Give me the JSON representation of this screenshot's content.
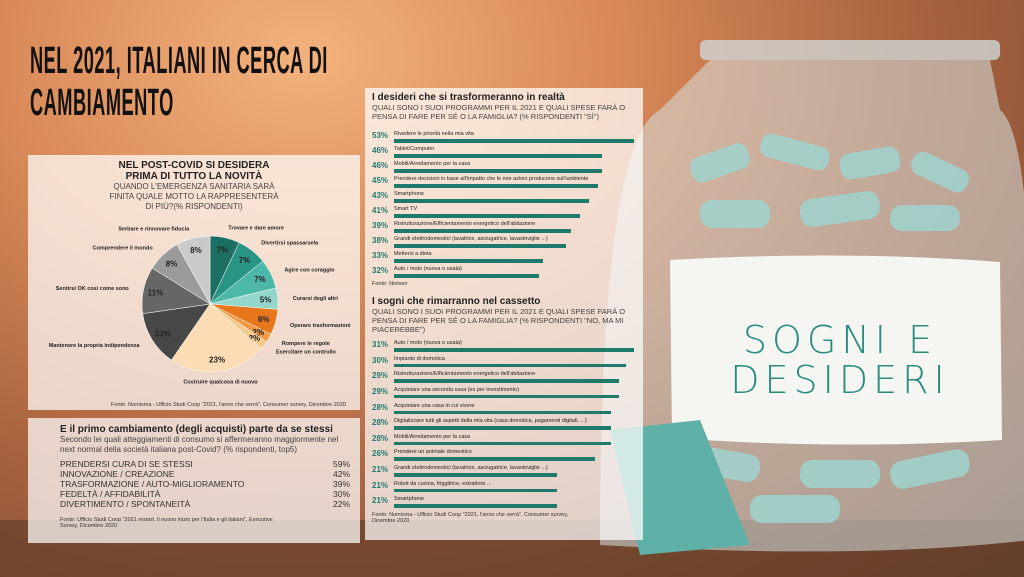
{
  "title": "NEL 2021, ITALIANI IN CERCA DI CAMBIAMENTO",
  "jar_label": "SOGNI E DESIDERI",
  "chart_data": [
    {
      "type": "pie",
      "title": "NEL POST-COVID SI DESIDERA PRIMA DI TUTTO LA NOVITÀ",
      "subtitle": "QUANDO L'EMERGENZA SANITARIA SARÀ FINITA QUALE MOTTO LA RAPPRESENTERÀ DI PIÙ?(% RISPONDENTI)",
      "categories": [
        "Trovare e dare amore",
        "Divertirsi spassarsela",
        "Agire con coraggio",
        "Curarsi degli altri",
        "Operare trasformazioni",
        "Rompere le regole",
        "Esercitare un controllo",
        "Costruire qualcosa di nuovo",
        "Mantenere la propria indipendenza",
        "Sentirsi OK così come sono",
        "Comprendere il mondo",
        "Serbare e rinnovare fiducia"
      ],
      "values": [
        7,
        7,
        7,
        5,
        6,
        2,
        2,
        23,
        13,
        11,
        8,
        8
      ],
      "value_labels": [
        "7%",
        "7%",
        "7%",
        "5%",
        "6%",
        "2%",
        "2%",
        "23%",
        "13%",
        "11%",
        "8%",
        "8%"
      ],
      "colors": [
        "#1d6f63",
        "#2a9484",
        "#4db8a8",
        "#93d6cc",
        "#e8761a",
        "#f09a45",
        "#f5c98a",
        "#fbdcb4",
        "#474747",
        "#666666",
        "#9b9b9b",
        "#cacaca"
      ],
      "source": "Fonte: Nomisma - Ufficio Studi Coop \"2021, l'anno che verrà\", Consumer survey, Dicembre 2020"
    },
    {
      "type": "bar",
      "title": "I desideri che si trasformeranno in realtà",
      "subtitle": "QUALI SONO I SUOI PROGRAMMI PER IL 2021 E QUALI SPESE FARÀ O PENSA DI FARE PER SÉ O LA FAMIGLIA? (% RISPONDENTI \"SÌ\")",
      "categories": [
        "Rivedere le priorità nella mia vita",
        "Tablet/Computer",
        "Mobili/Arredamento per la casa",
        "Prendere decisioni in base all'impatto che le mie azioni producono sull'ambiente",
        "Smartphone",
        "Smart TV",
        "Ristrutturazione/Efficientamento energetico dell'abitazione",
        "Grandi elettrodomestici (lavatrice, asciugatrice, lavastoviglie ...)",
        "Mettersi a dieta",
        "Auto / moto (nuova o usata)"
      ],
      "values": [
        53,
        46,
        46,
        45,
        43,
        41,
        39,
        38,
        33,
        32
      ],
      "value_labels": [
        "53%",
        "46%",
        "46%",
        "45%",
        "43%",
        "41%",
        "39%",
        "38%",
        "33%",
        "32%"
      ],
      "color": "#1f7a6c",
      "source": "Fonte: Nielsen"
    },
    {
      "type": "bar",
      "title": "I sogni che rimarranno nel cassetto",
      "subtitle": "QUALI SONO I SUOI PROGRAMMI PER IL 2021 E QUALI SPESE FARÀ O PENSA DI FARE PER SÉ O LA FAMIGLIA? (% RISPONDENTI \"NO, MA MI PIACEREBBE\")",
      "categories": [
        "Auto / moto (nuova o usata)",
        "Impianto di domotica",
        "Ristrutturazione/Efficientamento energetico dell'abitazione",
        "Acquistare una seconda casa (es per investimento)",
        "Acquistare una casa in cui vivere",
        "Digitalizzare tutti gli aspetti della mia vita (casa domotica, pagamenti digitali, ...)",
        "Mobili/Arredamento per la casa",
        "Prendere un animale domestico",
        "Grandi elettrodomestici (lavatrice, asciugatrice, lavastoviglie ...)",
        "Robot da cucina, friggitrice, estrattore ...",
        "Smartphone"
      ],
      "values": [
        31,
        30,
        29,
        29,
        28,
        28,
        28,
        26,
        21,
        21,
        21
      ],
      "value_labels": [
        "31%",
        "30%",
        "29%",
        "29%",
        "28%",
        "28%",
        "28%",
        "26%",
        "21%",
        "21%",
        "21%"
      ],
      "color": "#1f7a6c",
      "source": "Fonte: Nomisma - Ufficio Studi Coop \"2021, l'anno che verrà\", Consumer survey, Dicembre 2020"
    }
  ],
  "table": {
    "title": "E il primo cambiamento (degli acquisti) parte da se stessi",
    "subtitle": "Secondo lei quali atteggiamenti di consumo si affermeranno maggiormente nel next normal della società italiana post-Covid? (% rispondenti, top5)",
    "rows": [
      [
        "PRENDERSI CURA DI SE STESSI",
        "59%"
      ],
      [
        "INNOVAZIONE / CREAZIONE",
        "42%"
      ],
      [
        "TRASFORMAZIONE / AUTO-MIGLIORAMENTO",
        "39%"
      ],
      [
        "FEDELTÀ / AFFIDABILITÀ",
        "30%"
      ],
      [
        "DIVERTIMENTO / SPONTANEITÀ",
        "22%"
      ]
    ],
    "source": "Fonte: Ufficio Studi Coop \"2021 restart. Il nuovo inizio per l'Italia e gli italiani\", Executive Survey, Dicembre 2020"
  }
}
